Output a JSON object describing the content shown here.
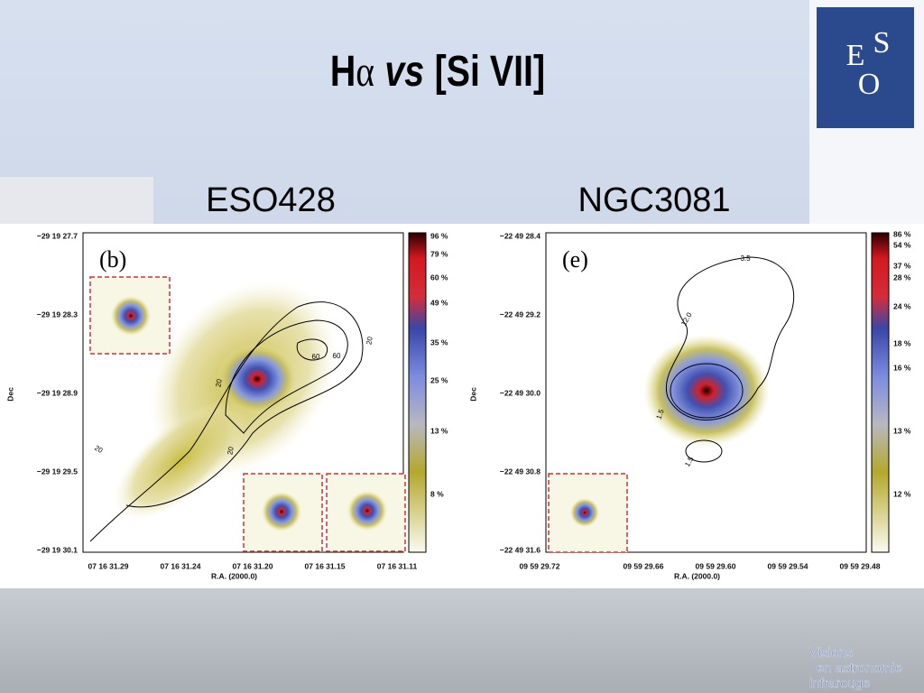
{
  "title": {
    "parts": [
      "H",
      "α",
      "vs",
      "[Si VII]"
    ]
  },
  "panels": [
    {
      "name": "ESO428",
      "label": "(b)",
      "y_axis": "Dec",
      "x_axis": "R.A. (2000.0)",
      "y_ticks": [
        "−29 19 27.7",
        "−29 19 28.3",
        "−29 19 28.9",
        "−29 19 29.5",
        "−29 19 30.1"
      ],
      "x_ticks": [
        "07 16 31.29",
        "07 16 31.24",
        "07 16 31.20",
        "07 16 31.15",
        "07 16 31.11"
      ],
      "colorbar": [
        "96 %",
        "79 %",
        "60 %",
        "49 %",
        "35 %",
        "25 %",
        "13 %",
        "8 %"
      ],
      "contours": [
        "20",
        "60",
        "60",
        "20",
        "20",
        "20"
      ]
    },
    {
      "name": "NGC3081",
      "label": "(e)",
      "y_axis": "Dec",
      "x_axis": "R.A. (2000.0)",
      "y_ticks": [
        "−22 49 28.4",
        "−22 49 29.2",
        "−22 49 30.0",
        "−22 49 30.8",
        "−22 49 31.6"
      ],
      "x_ticks": [
        "09 59 29.72",
        "09 59 29.66",
        "09 59 29.60",
        "09 59 29.54",
        "09 59 29.48"
      ],
      "colorbar": [
        "86 %",
        "54 %",
        "37 %",
        "28 %",
        "24 %",
        "18 %",
        "16 %",
        "13 %",
        "12 %"
      ],
      "contours": [
        "3.5",
        "12.0",
        "1.5",
        "1.5"
      ]
    }
  ],
  "logo": {
    "letters": [
      "E",
      "S",
      "O"
    ]
  },
  "footer": [
    "Visions",
    "en astronomie",
    "infrarouge"
  ]
}
